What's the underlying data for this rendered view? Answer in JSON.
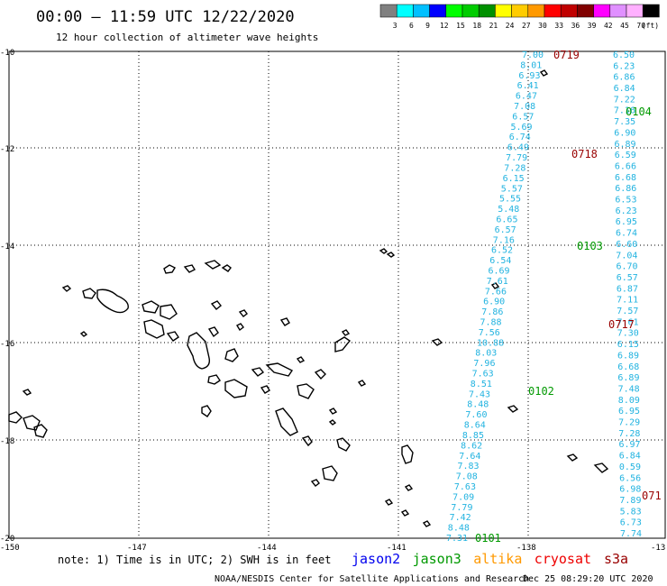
{
  "header": {
    "title": "00:00 – 11:59 UTC 12/22/2020",
    "subtitle": "12 hour collection of altimeter wave heights"
  },
  "color_scale": {
    "unit": "(ft)",
    "ticks": [
      "3",
      "6",
      "9",
      "12",
      "15",
      "18",
      "21",
      "24",
      "27",
      "30",
      "33",
      "36",
      "39",
      "42",
      "45",
      "70"
    ],
    "colors": [
      "#808080",
      "#00ffff",
      "#00c0ff",
      "#0000ff",
      "#00ff00",
      "#00cc00",
      "#009000",
      "#ffff00",
      "#ffcc00",
      "#ff9900",
      "#ff0000",
      "#c00000",
      "#800000",
      "#ff00ff",
      "#e090ff",
      "#ffb0ff",
      "#000000"
    ]
  },
  "axes": {
    "lat": [
      "-10",
      "-12",
      "-14",
      "-16",
      "-18",
      "-20"
    ],
    "lon": [
      "-150",
      "-147",
      "-144",
      "-141",
      "-138",
      "-13"
    ]
  },
  "footer": {
    "note": "note:  1) Time is in UTC; 2) SWH is in feet",
    "credit": "NOAA/NESDIS Center for Satellite Applications and Research",
    "generated": "Dec 25 08:29:20 UTC 2020",
    "legend": [
      {
        "name": "jason2",
        "color": "#0000ee"
      },
      {
        "name": "jason3",
        "color": "#009900"
      },
      {
        "name": "altika",
        "color": "#ff9900"
      },
      {
        "name": "cryosat",
        "color": "#ee0000"
      },
      {
        "name": "s3a",
        "color": "#990000"
      }
    ]
  },
  "pass_times": [
    {
      "text": "0719",
      "color": "#990000"
    },
    {
      "text": "0104",
      "color": "#009900"
    },
    {
      "text": "0718",
      "color": "#990000"
    },
    {
      "text": "0103",
      "color": "#009900"
    },
    {
      "text": "0717",
      "color": "#990000"
    },
    {
      "text": "0102",
      "color": "#009900"
    },
    {
      "text": "0101",
      "color": "#009900"
    },
    {
      "text": "071",
      "color": "#990000"
    }
  ],
  "track_west": [
    "7.00",
    "8.01",
    "6.93",
    "6.41",
    "6.47",
    "7.08",
    "6.57",
    "5.69",
    "6.74",
    "6.49",
    "7.79",
    "7.28",
    "6.15",
    "5.57",
    "5.55",
    "5.48",
    "6.65",
    "6.57",
    "7.16",
    "6.52",
    "6.54",
    "6.69",
    "7.61",
    "7.66",
    "6.90",
    "7.86",
    "7.88",
    "7.56",
    "10.88",
    "8.03",
    "7.96",
    "7.63",
    "8.51",
    "7.43",
    "8.48",
    "7.60",
    "8.64",
    "8.85",
    "8.62",
    "7.64",
    "7.83",
    "7.08",
    "7.63",
    "7.09",
    "7.79",
    "7.42",
    "8.48",
    "7.31"
  ],
  "track_east": [
    "6.50",
    "6.23",
    "6.86",
    "6.84",
    "7.22",
    "7.16",
    "7.35",
    "6.90",
    "6.89",
    "6.59",
    "6.66",
    "6.68",
    "6.86",
    "6.53",
    "6.23",
    "6.95",
    "6.74",
    "6.60",
    "7.04",
    "6.70",
    "6.57",
    "6.87",
    "7.11",
    "7.57",
    "7.61",
    "7.30",
    "6.15",
    "6.89",
    "6.68",
    "6.89",
    "7.48",
    "8.09",
    "6.95",
    "7.29",
    "7.28",
    "6.97",
    "6.84",
    "0.59",
    "6.56",
    "6.98",
    "7.89",
    "5.83",
    "6.73",
    "7.74"
  ]
}
